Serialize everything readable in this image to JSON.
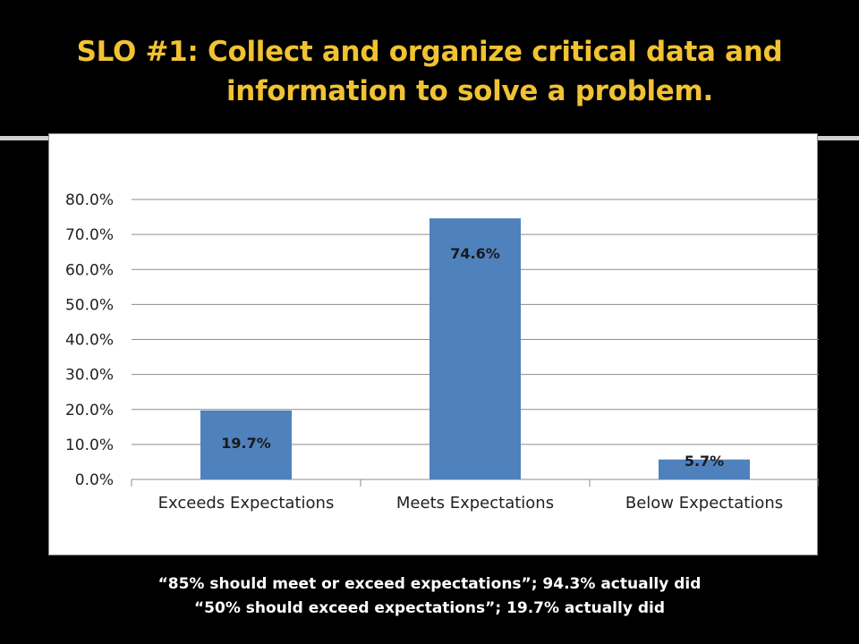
{
  "slide": {
    "title_line1": "SLO #1: Collect and organize critical data and",
    "title_line2": "information to solve a problem.",
    "caption_line1": "“85% should meet or exceed expectations”; 94.3% actually did",
    "caption_line2": "“50% should exceed expectations”; 19.7% actually did"
  },
  "colors": {
    "title": "#F1C232",
    "bar": "#4F81BD",
    "background": "#000000",
    "plot_background": "#FFFFFF"
  },
  "chart_data": {
    "type": "bar",
    "categories": [
      "Exceeds Expectations",
      "Meets Expectations",
      "Below Expectations"
    ],
    "values": [
      19.7,
      74.6,
      5.7
    ],
    "data_labels": [
      "19.7%",
      "74.6%",
      "5.7%"
    ],
    "y_ticks": [
      "0.0%",
      "10.0%",
      "20.0%",
      "30.0%",
      "40.0%",
      "50.0%",
      "60.0%",
      "70.0%",
      "80.0%"
    ],
    "ylim": [
      0,
      80
    ],
    "title": "",
    "xlabel": "",
    "ylabel": "",
    "grid": true,
    "legend": "none"
  }
}
